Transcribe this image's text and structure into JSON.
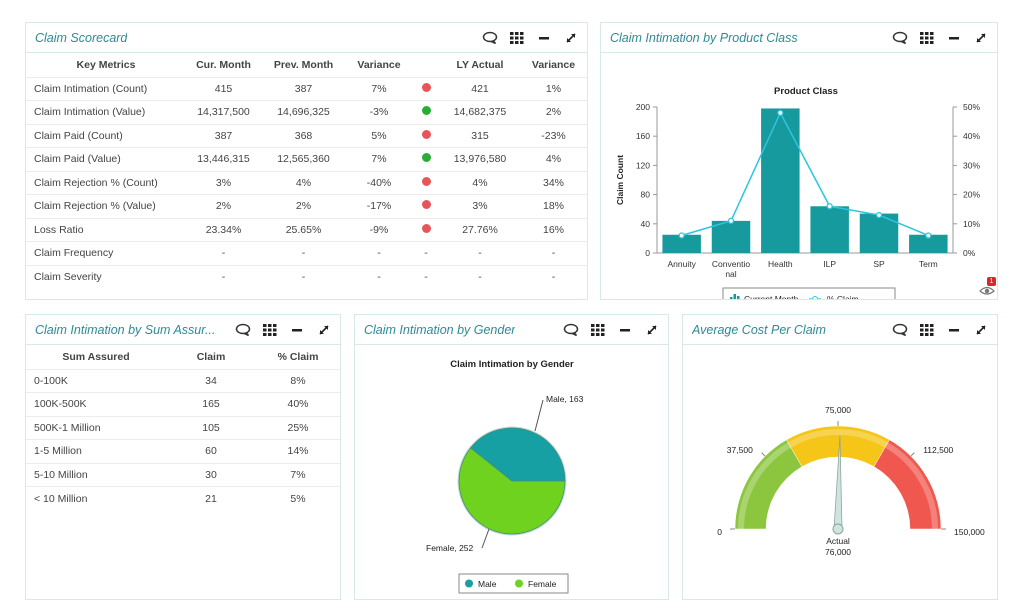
{
  "scorecard": {
    "title": "Claim Scorecard",
    "columns": [
      "Key Metrics",
      "Cur. Month",
      "Prev. Month",
      "Variance",
      "",
      "LY Actual",
      "Variance"
    ],
    "rows": [
      {
        "metric": "Claim Intimation (Count)",
        "cur": "415",
        "prev": "387",
        "var": "7%",
        "status": "red",
        "ly": "421",
        "lyvar": "1%"
      },
      {
        "metric": "Claim Intimation (Value)",
        "cur": "14,317,500",
        "prev": "14,696,325",
        "var": "-3%",
        "status": "green",
        "ly": "14,682,375",
        "lyvar": "2%"
      },
      {
        "metric": "Claim Paid (Count)",
        "cur": "387",
        "prev": "368",
        "var": "5%",
        "status": "red",
        "ly": "315",
        "lyvar": "-23%"
      },
      {
        "metric": "Claim Paid (Value)",
        "cur": "13,446,315",
        "prev": "12,565,360",
        "var": "7%",
        "status": "green",
        "ly": "13,976,580",
        "lyvar": "4%"
      },
      {
        "metric": "Claim Rejection % (Count)",
        "cur": "3%",
        "prev": "4%",
        "var": "-40%",
        "status": "red",
        "ly": "4%",
        "lyvar": "34%"
      },
      {
        "metric": "Claim Rejection % (Value)",
        "cur": "2%",
        "prev": "2%",
        "var": "-17%",
        "status": "red",
        "ly": "3%",
        "lyvar": "18%"
      },
      {
        "metric": "Loss Ratio",
        "cur": "23.34%",
        "prev": "25.65%",
        "var": "-9%",
        "status": "red",
        "ly": "27.76%",
        "lyvar": "16%"
      },
      {
        "metric": "Claim Frequency",
        "cur": "-",
        "prev": "-",
        "var": "-",
        "status": "-",
        "ly": "-",
        "lyvar": "-"
      },
      {
        "metric": "Claim Severity",
        "cur": "-",
        "prev": "-",
        "var": "-",
        "status": "-",
        "ly": "-",
        "lyvar": "-"
      }
    ]
  },
  "product_panel": {
    "title": "Claim Intimation by Product Class",
    "badge": "1"
  },
  "sum_assured": {
    "title": "Claim Intimation by Sum Assur...",
    "columns": [
      "Sum Assured",
      "Claim",
      "% Claim"
    ],
    "rows": [
      {
        "range": "0-100K",
        "claim": "34",
        "pct": "8%"
      },
      {
        "range": "100K-500K",
        "claim": "165",
        "pct": "40%"
      },
      {
        "range": "500K-1 Million",
        "claim": "105",
        "pct": "25%"
      },
      {
        "range": "1-5 Million",
        "claim": "60",
        "pct": "14%"
      },
      {
        "range": "5-10 Million",
        "claim": "30",
        "pct": "7%"
      },
      {
        "range": "< 10 Million",
        "claim": "21",
        "pct": "5%"
      }
    ]
  },
  "gender_panel": {
    "title": "Claim Intimation by Gender"
  },
  "cost_panel": {
    "title": "Average Cost Per Claim"
  },
  "colors": {
    "teal": "#179a9d",
    "line": "#2ec4df",
    "male": "#16a0a3",
    "female": "#6fd21f",
    "red": "#e8545a",
    "green": "#27ae35",
    "title": "#2b8c95"
  },
  "chart_data": [
    {
      "type": "bar",
      "title": "Product Class",
      "categories": [
        "Annuity",
        "Conventional",
        "Health",
        "ILP",
        "SP",
        "Term"
      ],
      "category_labels": [
        [
          "Annuity"
        ],
        [
          "Conventio",
          "nal"
        ],
        [
          "Health"
        ],
        [
          "ILP"
        ],
        [
          "SP"
        ],
        [
          "Term"
        ]
      ],
      "ylabel": "Claim Count",
      "ylim": [
        0,
        200
      ],
      "yticks": [
        0,
        40,
        80,
        120,
        160,
        200
      ],
      "y2ticks": [
        "0%",
        "10%",
        "20%",
        "30%",
        "40%",
        "50%"
      ],
      "y2lim": [
        0,
        50
      ],
      "series": [
        {
          "name": "Current Month",
          "type": "bar",
          "values": [
            25,
            44,
            198,
            64,
            54,
            25
          ]
        },
        {
          "name": "% Claim",
          "type": "line",
          "axis": "right",
          "values": [
            6,
            11,
            48,
            16,
            13,
            6
          ]
        }
      ],
      "legend": "bottom"
    },
    {
      "type": "pie",
      "title": "Claim Intimation by Gender",
      "slices": [
        {
          "name": "Male",
          "value": 163,
          "label": "Male, 163"
        },
        {
          "name": "Female",
          "value": 252,
          "label": "Female, 252"
        }
      ],
      "legend": "bottom"
    },
    {
      "type": "gauge",
      "min": 0,
      "max": 150000,
      "tick_labels": [
        "0",
        "37,500",
        "75,000",
        "112,500",
        "150,000"
      ],
      "bands": [
        {
          "from": 0,
          "to": 50000,
          "color": "#8cc63f"
        },
        {
          "from": 50000,
          "to": 100000,
          "color": "#f5c518"
        },
        {
          "from": 100000,
          "to": 150000,
          "color": "#f0584f"
        }
      ],
      "value": 76000,
      "value_label": "Actual",
      "value_text": "76,000"
    }
  ]
}
